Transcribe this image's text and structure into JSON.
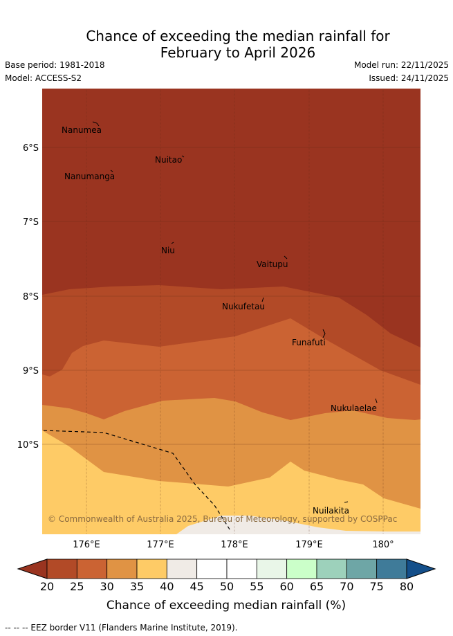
{
  "header": {
    "title_line1": "Chance of exceeding the median rainfall for",
    "title_line2": "February to April 2026",
    "base_period": "Base period: 1981-2018",
    "model": "Model: ACCESS-S2",
    "model_run": "Model run: 22/11/2025",
    "issued": "Issued: 24/11/2025"
  },
  "map": {
    "lat_labels": [
      "6°S",
      "7°S",
      "8°S",
      "9°S",
      "10°S"
    ],
    "lon_labels": [
      "176°E",
      "177°E",
      "178°E",
      "179°E",
      "180°"
    ],
    "places": [
      "Nanumea",
      "Nuitao",
      "Nanumanga",
      "Niu",
      "Vaitupu",
      "Nukufetau",
      "Funafuti",
      "Nukulaelae",
      "Nuilakita"
    ],
    "copyright": "© Commonwealth of Australia 2025, Bureau of Meteorology, supported by COSPPac",
    "zone_colors": {
      "z20": "#9a3420",
      "z25": "#b24a27",
      "z30": "#cb6333",
      "z35": "#e09344",
      "z40": "#fecb66",
      "z45": "#f0ebe6"
    }
  },
  "colorbar": {
    "ticks": [
      "20",
      "25",
      "30",
      "35",
      "40",
      "45",
      "50",
      "55",
      "60",
      "65",
      "70",
      "75",
      "80"
    ],
    "colors": [
      "#b24a27",
      "#cb6333",
      "#e09344",
      "#fecb66",
      "#f0ebe6",
      "#ffffff",
      "#ffffff",
      "#e9f6e8",
      "#cbffc9",
      "#9dd1bb",
      "#6ea6a6",
      "#3f7b99"
    ],
    "low_arrow_color": "#9a3420",
    "high_arrow_color": "#144f8a",
    "label": "Chance of exceeding median rainfall (%)"
  },
  "footer": {
    "eez_note": "-- -- -- EEZ border V11 (Flanders Marine Institute, 2019)."
  }
}
